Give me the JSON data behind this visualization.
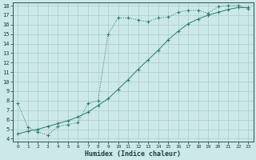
{
  "bg_color": "#cce8e8",
  "line_color": "#2e7d70",
  "grid_color": "#aacece",
  "xlabel": "Humidex (Indice chaleur)",
  "xlim": [
    -0.5,
    23.5
  ],
  "ylim": [
    3.7,
    18.3
  ],
  "yticks": [
    4,
    5,
    6,
    7,
    8,
    9,
    10,
    11,
    12,
    13,
    14,
    15,
    16,
    17,
    18
  ],
  "xticks": [
    0,
    1,
    2,
    3,
    4,
    5,
    6,
    7,
    8,
    9,
    10,
    11,
    12,
    13,
    14,
    15,
    16,
    17,
    18,
    19,
    20,
    21,
    22,
    23
  ],
  "curve1_x": [
    0,
    1,
    2,
    3,
    4,
    5,
    6,
    7,
    8,
    9,
    10,
    11,
    12,
    13,
    14,
    15,
    16,
    17,
    18,
    19,
    20,
    21,
    22,
    23
  ],
  "curve1_y": [
    7.7,
    5.2,
    4.7,
    4.4,
    5.3,
    5.5,
    5.7,
    7.7,
    8.0,
    15.0,
    16.7,
    16.7,
    16.5,
    16.3,
    16.7,
    16.8,
    17.3,
    17.5,
    17.5,
    17.2,
    17.9,
    18.0,
    18.0,
    17.7
  ],
  "curve2_x": [
    0,
    1,
    2,
    3,
    4,
    5,
    6,
    7,
    8,
    9,
    10,
    11,
    12,
    13,
    14,
    15,
    16,
    17,
    18,
    19,
    20,
    21,
    22,
    23
  ],
  "curve2_y": [
    4.5,
    4.8,
    5.0,
    5.3,
    5.6,
    5.9,
    6.3,
    6.8,
    7.5,
    8.2,
    9.2,
    10.2,
    11.3,
    12.3,
    13.3,
    14.4,
    15.3,
    16.1,
    16.6,
    17.0,
    17.3,
    17.6,
    17.8,
    17.8
  ]
}
